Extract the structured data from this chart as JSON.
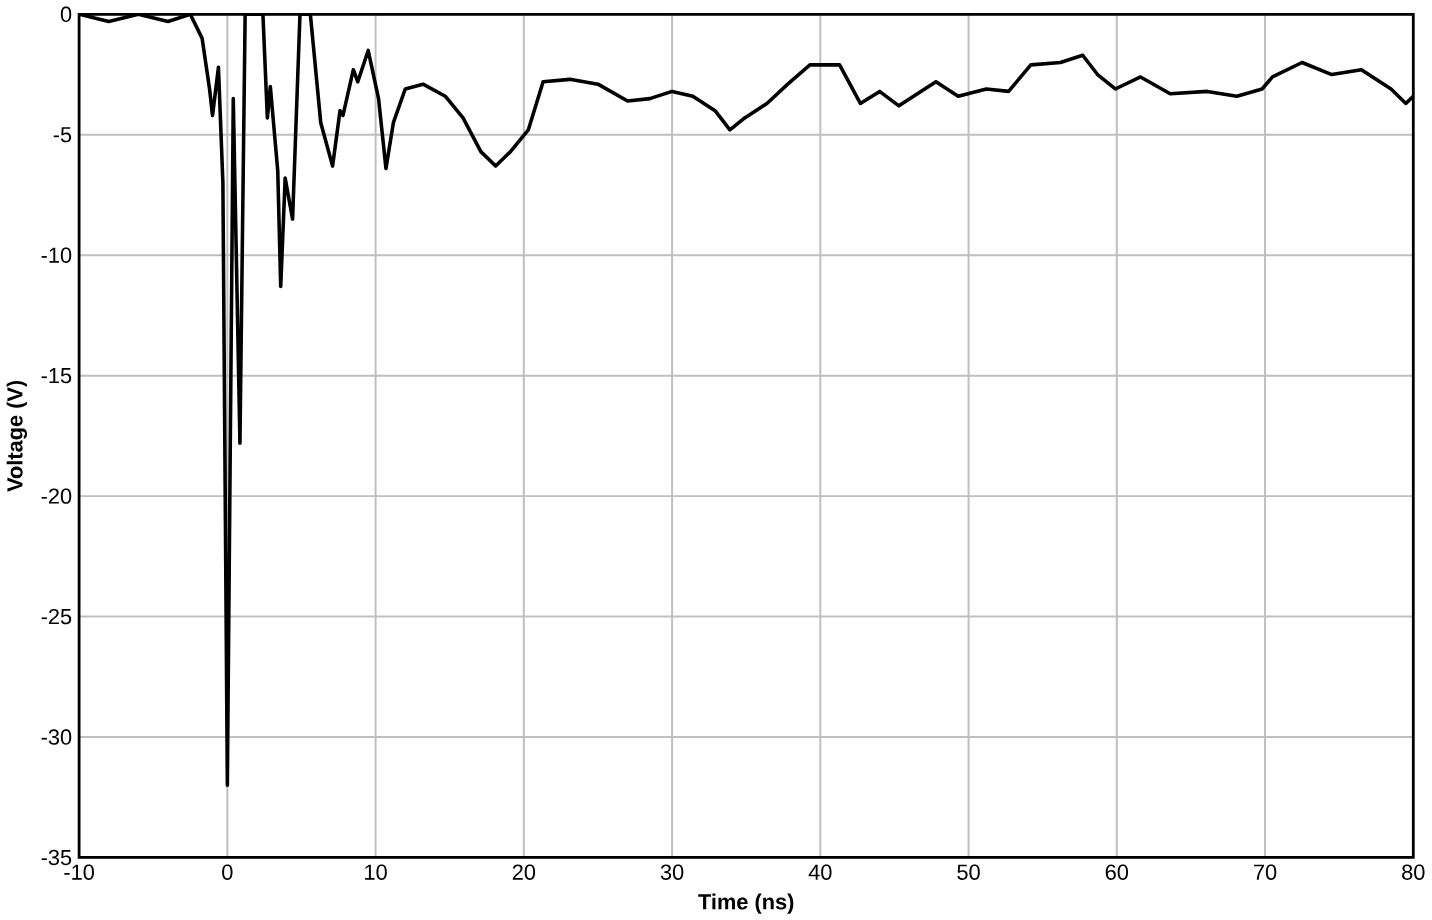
{
  "chart_data": {
    "type": "line",
    "xlabel": "Time (ns)",
    "ylabel": "Voltage (V)",
    "xlim": [
      -10,
      80
    ],
    "ylim": [
      -35,
      0
    ],
    "xticks": [
      -10,
      0,
      10,
      20,
      30,
      40,
      50,
      60,
      70,
      80
    ],
    "yticks": [
      -35,
      -30,
      -25,
      -20,
      -15,
      -10,
      -5,
      0
    ],
    "grid": true,
    "marker": "none",
    "line_style": "solid",
    "series": [
      {
        "color": "#000000",
        "x": [
          -10,
          -8,
          -6,
          -4,
          -2.5,
          -1.7,
          -1.2,
          -1.0,
          -0.6,
          -0.3,
          0,
          0.4,
          0.85,
          1.2,
          2.4,
          2.7,
          2.9,
          3.4,
          3.6,
          3.9,
          4.4,
          4.9,
          5.6,
          6.3,
          7.1,
          7.6,
          7.8,
          8.5,
          8.8,
          9.5,
          10.2,
          10.7,
          11.2,
          12.0,
          13.2,
          14.7,
          15.9,
          17.1,
          18.1,
          19.1,
          20.3,
          21.3,
          23.1,
          25.0,
          27.0,
          28.5,
          30.0,
          31.4,
          32.9,
          33.9,
          34.9,
          36.4,
          37.8,
          39.3,
          41.3,
          42.7,
          44.0,
          45.3,
          47.8,
          49.3,
          51.2,
          52.7,
          54.2,
          56.2,
          57.7,
          58.7,
          59.9,
          61.6,
          63.6,
          66.1,
          68.1,
          69.8,
          70.5,
          72.5,
          74.5,
          76.5,
          78.5,
          79.5,
          80
        ],
        "values": [
          0,
          -0.3,
          0,
          -0.3,
          0,
          -1,
          -3.1,
          -4.2,
          -2.2,
          -7,
          -32,
          -3.5,
          -17.8,
          0,
          0,
          -4.3,
          -3,
          -6.5,
          -11.3,
          -6.8,
          -8.5,
          0,
          0,
          -4.5,
          -6.3,
          -4,
          -4.2,
          -2.3,
          -2.8,
          -1.5,
          -3.5,
          -6.4,
          -4.5,
          -3.1,
          -2.9,
          -3.4,
          -4.3,
          -5.7,
          -6.3,
          -5.7,
          -4.8,
          -2.8,
          -2.7,
          -2.9,
          -3.6,
          -3.5,
          -3.2,
          -3.4,
          -4.0,
          -4.8,
          -4.3,
          -3.7,
          -2.9,
          -2.1,
          -2.1,
          -3.7,
          -3.2,
          -3.8,
          -2.8,
          -3.4,
          -3.1,
          -3.2,
          -2.1,
          -2.0,
          -1.7,
          -2.5,
          -3.1,
          -2.6,
          -3.3,
          -3.2,
          -3.4,
          -3.1,
          -2.6,
          -2.0,
          -2.5,
          -2.3,
          -3.1,
          -3.7,
          -3.4
        ]
      }
    ]
  }
}
